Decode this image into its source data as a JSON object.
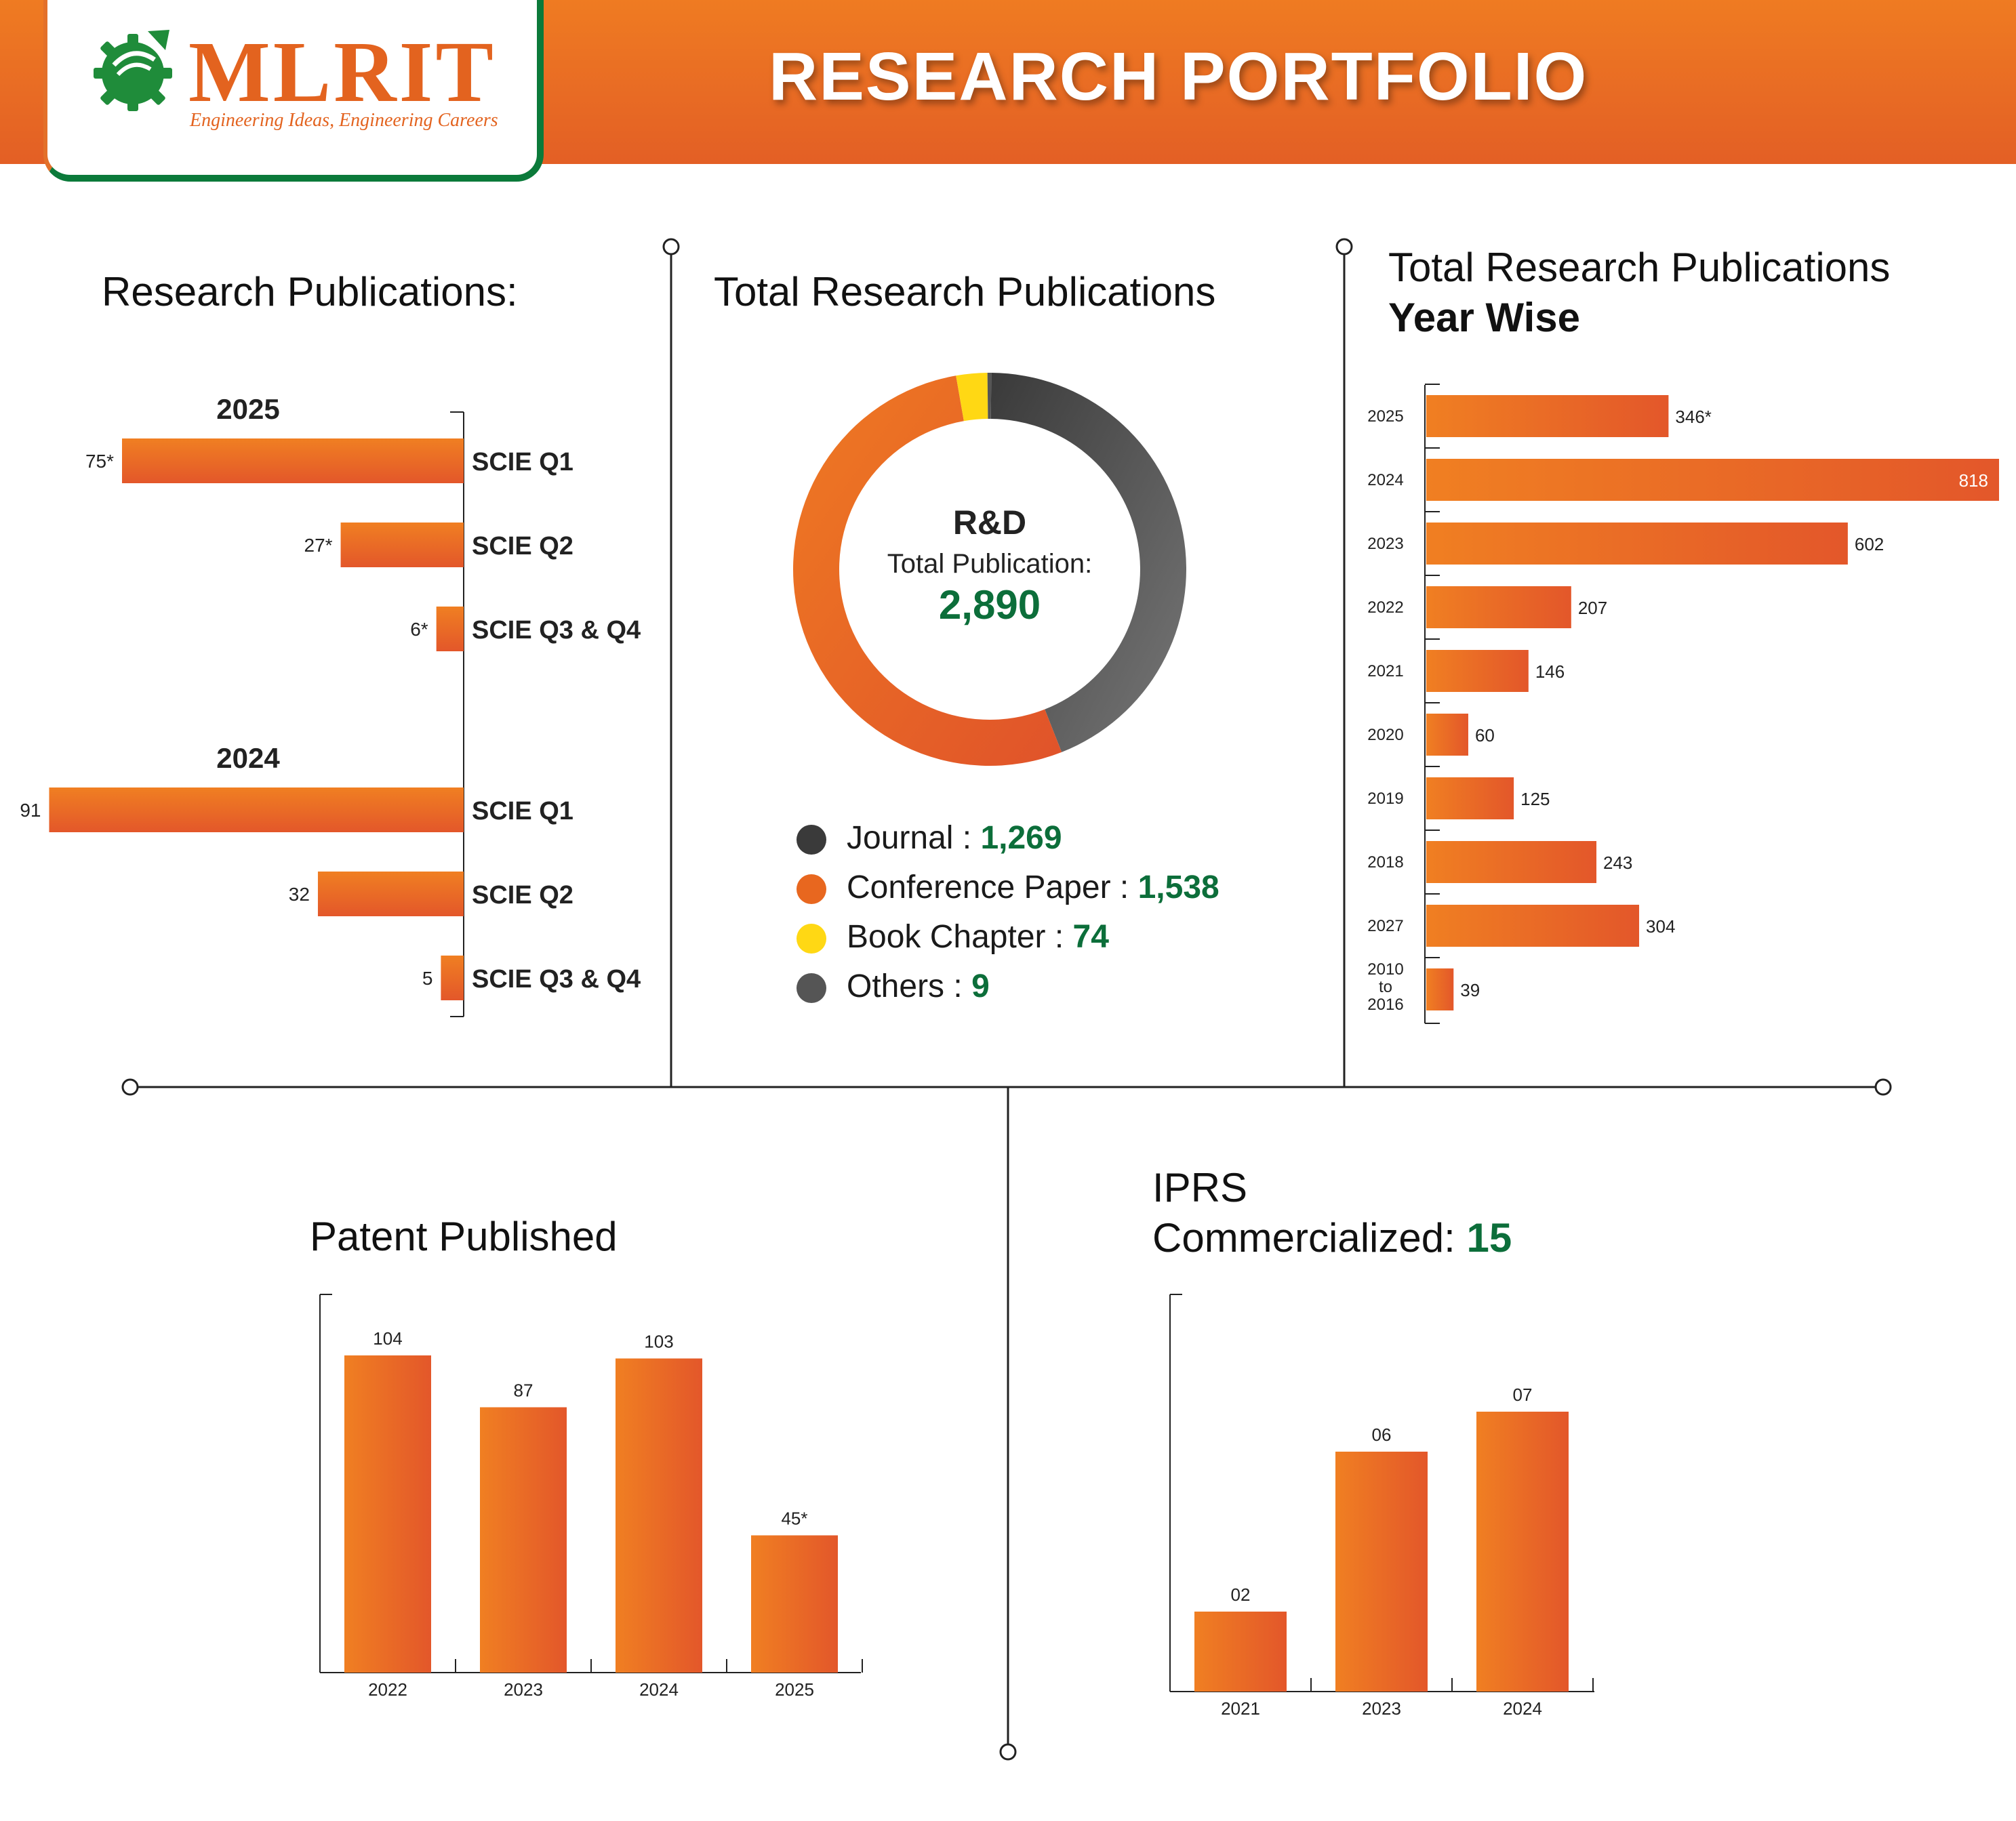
{
  "header": {
    "logo_name": "MLRIT",
    "logo_tagline": "Engineering Ideas, Engineering Careers",
    "title": "RESEARCH PORTFOLIO",
    "colors": {
      "orange": "#e8671f",
      "green": "#0c6e3a",
      "dark": "#3a3a3a"
    }
  },
  "sections": {
    "research_publications": "Research Publications:",
    "total_publications": "Total Research Publications",
    "year_wise_line1": "Total Research Publications",
    "year_wise_line2": "Year Wise",
    "patent": "Patent Published",
    "iprs_line1": "IPRS",
    "iprs_line2": "Commercialized:",
    "iprs_value": "15"
  },
  "donut": {
    "center_title": "R&D",
    "center_label": "Total Publication:",
    "center_value": "2,890",
    "legend": [
      {
        "label": "Journal :",
        "value": "1,269",
        "color": "#3a3a3a"
      },
      {
        "label": "Conference Paper :",
        "value": "1,538",
        "color": "#e8671f"
      },
      {
        "label": "Book Chapter :",
        "value": "74",
        "color": "#ffd814"
      },
      {
        "label": "Others :",
        "value": "9",
        "color": "#555555"
      }
    ]
  },
  "chart_data": [
    {
      "type": "bar",
      "orientation": "horizontal",
      "groups": [
        {
          "name": "2025",
          "categories": [
            "SCIE Q1",
            "SCIE Q2",
            "SCIE Q3 & Q4"
          ],
          "values": [
            75,
            27,
            6
          ],
          "labels": [
            "75*",
            "27*",
            "6*"
          ]
        },
        {
          "name": "2024",
          "categories": [
            "SCIE Q1",
            "SCIE Q2",
            "SCIE Q3 & Q4"
          ],
          "values": [
            91,
            32,
            5
          ],
          "labels": [
            "91",
            "32",
            "5"
          ]
        }
      ]
    },
    {
      "type": "pie",
      "categories": [
        "Journal",
        "Conference Paper",
        "Book Chapter",
        "Others"
      ],
      "values": [
        1269,
        1538,
        74,
        9
      ],
      "colors": [
        "#3a3a3a",
        "#e8671f",
        "#ffd814",
        "#555555"
      ]
    },
    {
      "type": "bar",
      "orientation": "horizontal",
      "categories": [
        "2025",
        "2024",
        "2023",
        "2022",
        "2021",
        "2020",
        "2019",
        "2018",
        "2027",
        "2010 to 2016"
      ],
      "values": [
        346,
        818,
        602,
        207,
        146,
        60,
        125,
        243,
        304,
        39
      ],
      "labels": [
        "346*",
        "818",
        "602",
        "207",
        "146",
        "60",
        "125",
        "243",
        "304",
        "39"
      ]
    },
    {
      "type": "bar",
      "categories": [
        "2022",
        "2023",
        "2024",
        "2025"
      ],
      "values": [
        104,
        87,
        103,
        45
      ],
      "labels": [
        "104",
        "87",
        "103",
        "45*"
      ]
    },
    {
      "type": "bar",
      "categories": [
        "2021",
        "2023",
        "2024"
      ],
      "values": [
        2,
        6,
        7
      ],
      "labels": [
        "02",
        "06",
        "07"
      ]
    }
  ]
}
